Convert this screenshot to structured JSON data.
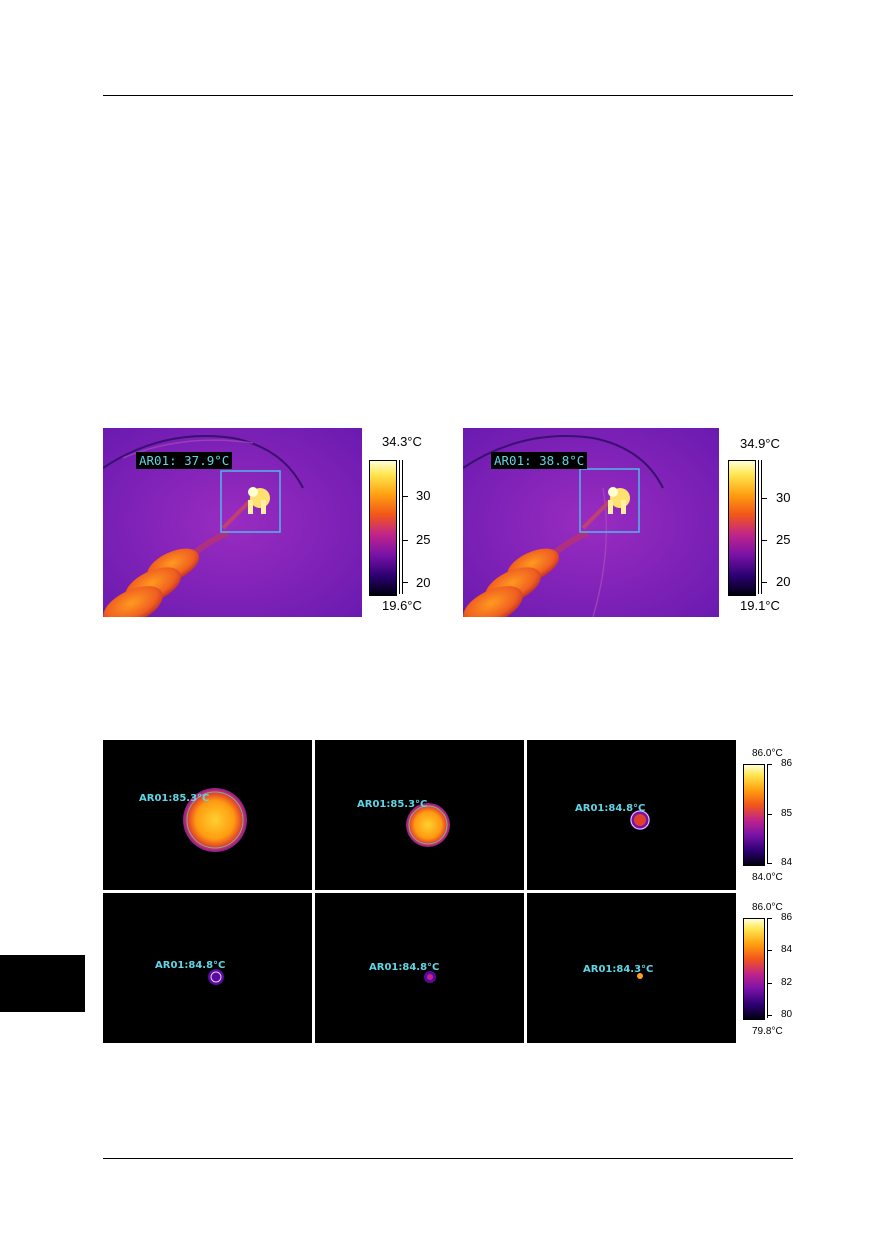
{
  "thermal_top": [
    {
      "ar_label": "AR01: 37.9°C",
      "scale_max": "34.3°C",
      "scale_min": "19.6°C",
      "ticks": [
        "30",
        "25",
        "20"
      ]
    },
    {
      "ar_label": "AR01: 38.8°C",
      "scale_max": "34.9°C",
      "scale_min": "19.1°C",
      "ticks": [
        "30",
        "25",
        "20"
      ]
    }
  ],
  "thermal_grid": {
    "row1": {
      "labels": [
        "AR01:85.3°C",
        "AR01:85.3°C",
        "AR01:84.8°C"
      ],
      "scale_max": "86.0°C",
      "scale_min": "84.0°C",
      "ticks": [
        "86",
        "85",
        "84"
      ]
    },
    "row2": {
      "labels": [
        "AR01:84.8°C",
        "AR01:84.8°C",
        "AR01:84.3°C"
      ],
      "scale_max": "86.0°C",
      "scale_min": "79.8°C",
      "ticks": [
        "86",
        "84",
        "82",
        "80"
      ]
    }
  },
  "colors": {
    "palette": [
      "#000010",
      "#2a0070",
      "#7a12a8",
      "#c0248a",
      "#f2561a",
      "#ffa010",
      "#ffe650",
      "#ffffd8"
    ],
    "label_cyan": "#5fd6e6",
    "roi_box": "#4fb8e8"
  }
}
